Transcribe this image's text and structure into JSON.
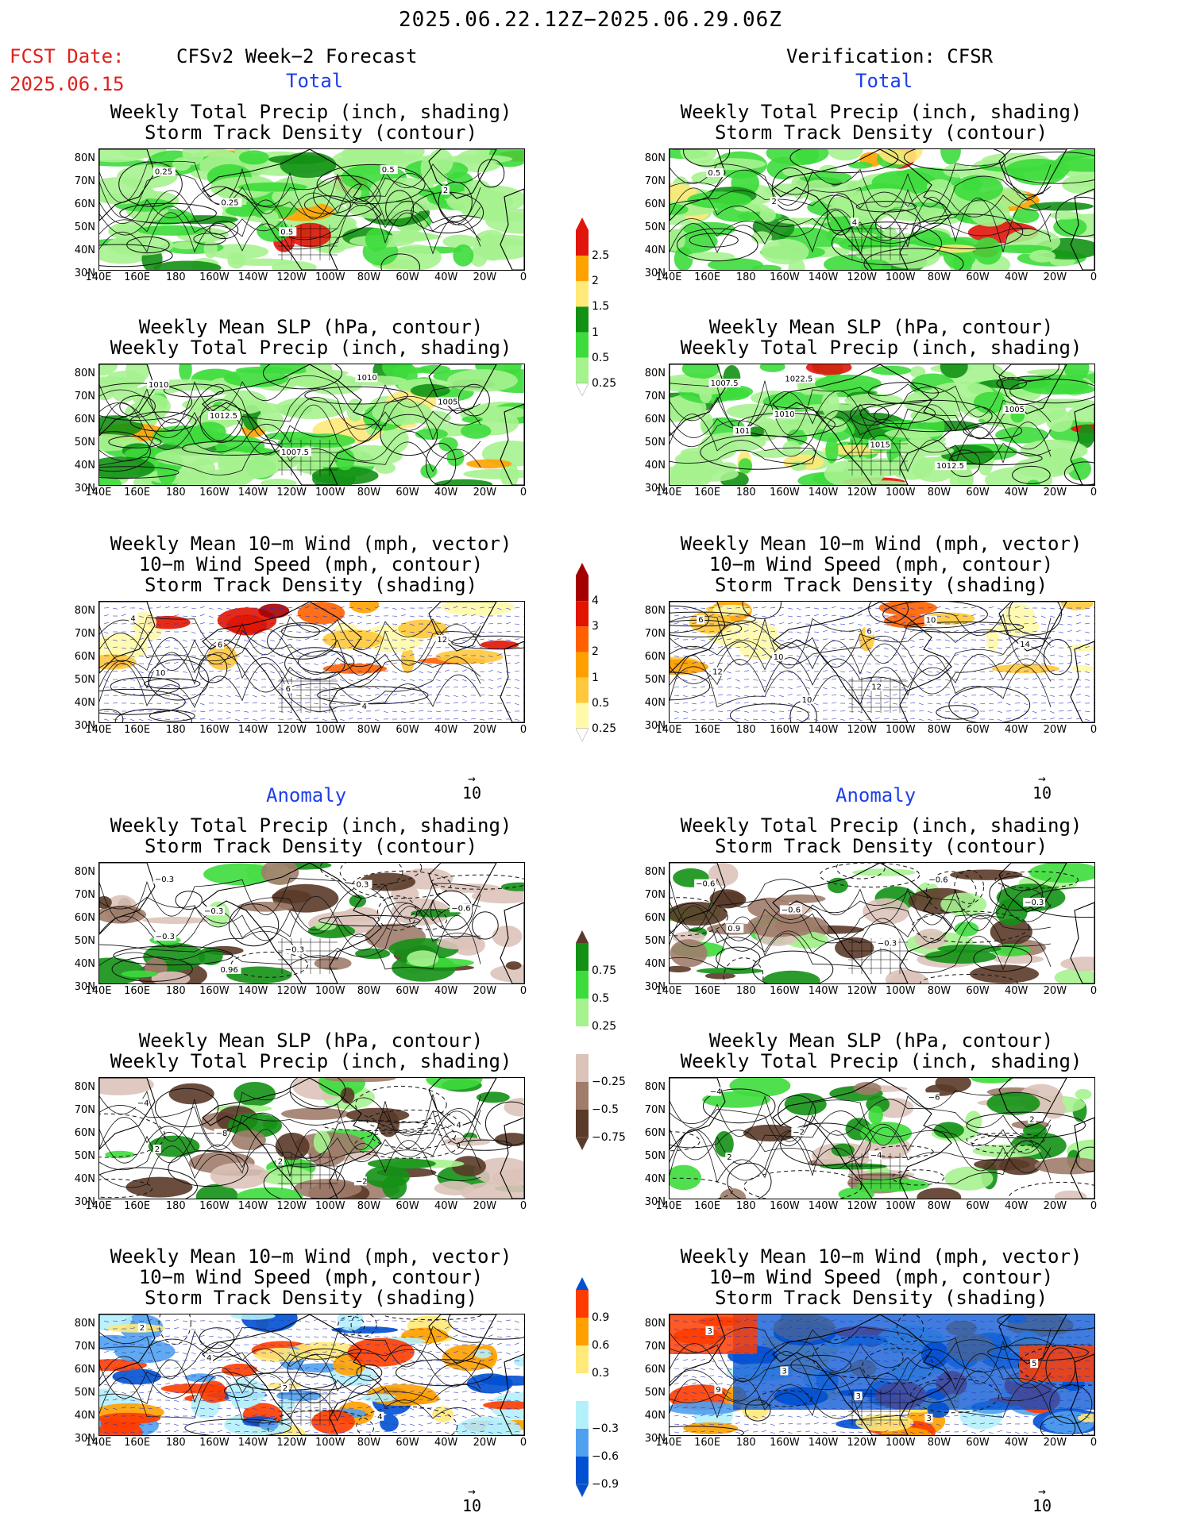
{
  "header": {
    "date_range": "2025.06.22.12Z−2025.06.29.06Z",
    "fcst_label": "FCST Date:",
    "fcst_date": "2025.06.15",
    "left_title": "CFSv2 Week−2 Forecast",
    "right_title": "Verification: CFSR",
    "section_total": "Total",
    "section_anomaly": "Anomaly"
  },
  "panel_titles": {
    "p1": [
      "Weekly Total Precip (inch, shading)",
      "Storm Track Density (contour)"
    ],
    "p2": [
      "Weekly Mean SLP (hPa, contour)",
      "Weekly Total Precip (inch, shading)"
    ],
    "p3": [
      "Weekly Mean 10−m Wind (mph, vector)",
      "10−m Wind Speed (mph, contour)",
      "Storm Track Density (shading)"
    ]
  },
  "lat_labels": [
    "80N",
    "70N",
    "60N",
    "50N",
    "40N",
    "30N"
  ],
  "lon_labels": [
    "140E",
    "160E",
    "180",
    "160W",
    "140W",
    "120W",
    "100W",
    "80W",
    "60W",
    "40W",
    "20W",
    "0"
  ],
  "vector_ref": "10",
  "colorbars": {
    "precip": [
      "0.25",
      "0.5",
      "1",
      "1.5",
      "2",
      "2.5"
    ],
    "storm": [
      "0.25",
      "0.5",
      "1",
      "2",
      "3",
      "4"
    ],
    "precip_anom": [
      "0.75",
      "0.5",
      "0.25",
      "−0.25",
      "−0.5",
      "−0.75"
    ],
    "storm_anom": [
      "0.9",
      "0.6",
      "0.3",
      "−0.3",
      "−0.6",
      "−0.9"
    ]
  },
  "colors": {
    "precip": [
      "#a6f28f",
      "#3ddc3c",
      "#139115",
      "#ffe978",
      "#ffa200",
      "#e1150c"
    ],
    "storm": [
      "#fffaaa",
      "#ffc83c",
      "#ffa000",
      "#ff6000",
      "#e11400",
      "#a50000"
    ],
    "precip_anom": [
      "#139115",
      "#3ddc3c",
      "#a6f28f",
      "#dbc3b9",
      "#a07c6a",
      "#5a3a28"
    ],
    "storm_anom": [
      "#ff3c00",
      "#ffa000",
      "#ffe978",
      "#b4f0fa",
      "#50a0f0",
      "#0050d2"
    ]
  },
  "contour_labels": {
    "ft1": [
      "0.25",
      "0.25",
      "0.5",
      "0.5",
      "2"
    ],
    "vt1": [
      "0.5",
      "2",
      "4"
    ],
    "ft2": [
      "1010",
      "1012.5",
      "1007.5",
      "1010",
      "1005"
    ],
    "vt2": [
      "1007.5",
      "1010",
      "1015",
      "1012.5",
      "1005",
      "101",
      "1022.5"
    ],
    "ft3": [
      "4",
      "6",
      "6",
      "4",
      "12",
      "10"
    ],
    "vt3": [
      "6",
      "10",
      "12",
      "10",
      "14",
      "12",
      "10",
      "6"
    ],
    "fa1": [
      "−0.3",
      "−0.3",
      "−0.3",
      "0.3",
      "−0.6",
      "−0.3",
      "0.96"
    ],
    "va1": [
      "−0.6",
      "−0.6",
      "−0.3",
      "−0.6",
      "−0.3",
      "0.9"
    ],
    "fa2": [
      "−4",
      "−8",
      "2",
      "−2",
      "4",
      "2"
    ],
    "va2": [
      "−4",
      "−2",
      "−4",
      "−6",
      "2",
      "2"
    ],
    "fa3": [
      "2",
      "4",
      "2",
      "4"
    ],
    "va3": [
      "3",
      "3",
      "3",
      "3",
      "5",
      "9"
    ]
  }
}
